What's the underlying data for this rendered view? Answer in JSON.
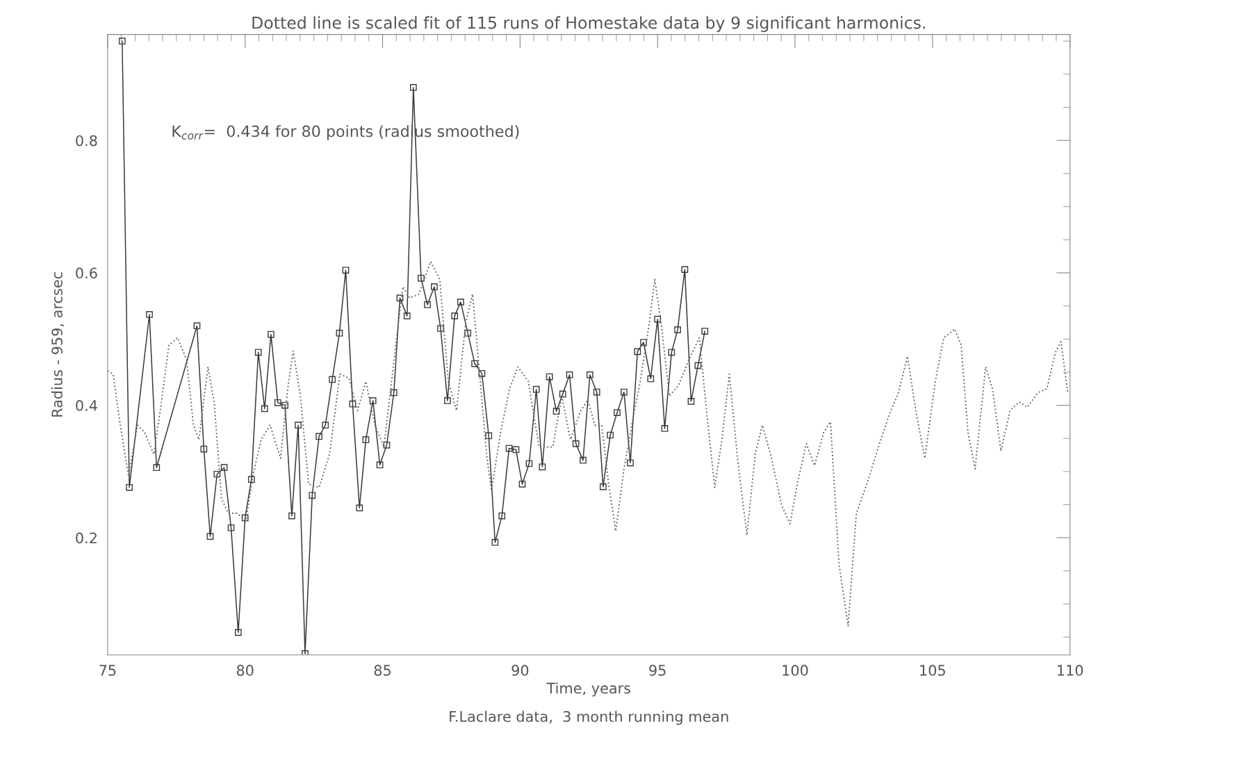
{
  "chart_data": {
    "type": "line",
    "title": "Dotted line is scaled fit of 115 runs of Homestake data by 9 significant harmonics.",
    "xlabel": "Time, years",
    "ylabel": "Radius - 959, arcsec",
    "annotations": [
      "K$_{corr}$=  0.434 for 80 points (radius smoothed)",
      "F.Laclare data,  3 month running mean"
    ],
    "xlim": [
      75,
      110
    ],
    "xticks": [
      75,
      80,
      85,
      90,
      95,
      100,
      105,
      110
    ],
    "ylim": [
      0.023,
      0.96
    ],
    "yticks": [
      0.2,
      0.4,
      0.6,
      0.8
    ],
    "grid": false,
    "legend": false,
    "series": [
      {
        "color": "#3a3a3a",
        "marker": "square",
        "line_style": "solid",
        "x": [
          75.53,
          75.79,
          76.52,
          76.78,
          78.25,
          78.5,
          78.73,
          78.98,
          79.24,
          79.49,
          79.75,
          80.0,
          80.23,
          80.48,
          80.71,
          80.94,
          81.19,
          81.45,
          81.7,
          81.93,
          82.18,
          82.44,
          82.69,
          82.92,
          83.17,
          83.43,
          83.66,
          83.91,
          84.16,
          84.39,
          84.65,
          84.9,
          85.15,
          85.41,
          85.63,
          85.89,
          86.12,
          86.4,
          86.63,
          86.88,
          87.11,
          87.36,
          87.62,
          87.84,
          88.1,
          88.35,
          88.61,
          88.86,
          89.09,
          89.34,
          89.6,
          89.85,
          90.08,
          90.33,
          90.59,
          90.81,
          91.07,
          91.32,
          91.55,
          91.8,
          92.03,
          92.29,
          92.54,
          92.79,
          93.02,
          93.28,
          93.53,
          93.78,
          94.01,
          94.27,
          94.49,
          94.75,
          95.0,
          95.26,
          95.51,
          95.73,
          95.99,
          96.22,
          96.47,
          96.72
        ],
        "values": [
          0.95,
          0.276,
          0.537,
          0.306,
          0.52,
          0.334,
          0.202,
          0.296,
          0.306,
          0.215,
          0.057,
          0.23,
          0.288,
          0.48,
          0.395,
          0.507,
          0.404,
          0.4,
          0.233,
          0.37,
          0.025,
          0.264,
          0.353,
          0.37,
          0.439,
          0.509,
          0.604,
          0.402,
          0.245,
          0.348,
          0.407,
          0.31,
          0.34,
          0.419,
          0.562,
          0.535,
          0.88,
          0.592,
          0.552,
          0.579,
          0.516,
          0.407,
          0.535,
          0.556,
          0.509,
          0.463,
          0.448,
          0.354,
          0.193,
          0.233,
          0.335,
          0.333,
          0.281,
          0.312,
          0.424,
          0.307,
          0.443,
          0.391,
          0.417,
          0.446,
          0.342,
          0.317,
          0.446,
          0.42,
          0.277,
          0.355,
          0.389,
          0.42,
          0.313,
          0.481,
          0.495,
          0.44,
          0.53,
          0.365,
          0.48,
          0.514,
          0.605,
          0.406,
          0.46,
          0.512
        ]
      },
      {
        "color": "#6a6a6a",
        "marker": "none",
        "line_style": "dotted",
        "x": [
          75.0,
          75.2,
          75.46,
          75.76,
          76.09,
          76.35,
          76.68,
          76.93,
          77.23,
          77.54,
          77.87,
          78.12,
          78.32,
          78.65,
          78.88,
          79.14,
          79.39,
          79.7,
          80.03,
          80.28,
          80.58,
          80.91,
          81.29,
          81.55,
          81.75,
          82.01,
          82.31,
          82.69,
          83.07,
          83.45,
          83.78,
          84.09,
          84.39,
          84.72,
          85.05,
          85.48,
          85.74,
          85.99,
          86.32,
          86.75,
          87.08,
          87.39,
          87.69,
          88.02,
          88.27,
          88.53,
          88.78,
          88.96,
          89.29,
          89.62,
          89.92,
          90.3,
          90.69,
          91.19,
          91.52,
          91.83,
          92.21,
          92.46,
          92.72,
          92.97,
          93.22,
          93.48,
          93.78,
          94.11,
          94.37,
          94.7,
          94.9,
          95.13,
          95.43,
          95.76,
          96.14,
          96.52,
          96.78,
          97.08,
          97.34,
          97.61,
          97.92,
          98.25,
          98.55,
          98.81,
          99.11,
          99.52,
          99.82,
          100.08,
          100.41,
          100.71,
          101.04,
          101.29,
          101.6,
          101.93,
          102.23,
          102.61,
          103.07,
          103.43,
          103.76,
          104.09,
          104.39,
          104.72,
          105.1,
          105.41,
          105.81,
          106.04,
          106.29,
          106.55,
          106.93,
          107.18,
          107.49,
          107.82,
          108.15,
          108.45,
          108.83,
          109.16,
          109.47,
          109.67,
          109.92
        ],
        "values": [
          0.452,
          0.447,
          0.37,
          0.293,
          0.37,
          0.359,
          0.326,
          0.397,
          0.491,
          0.502,
          0.469,
          0.37,
          0.348,
          0.458,
          0.403,
          0.259,
          0.237,
          0.237,
          0.226,
          0.293,
          0.348,
          0.37,
          0.32,
          0.425,
          0.482,
          0.414,
          0.281,
          0.276,
          0.326,
          0.447,
          0.441,
          0.392,
          0.436,
          0.37,
          0.337,
          0.491,
          0.579,
          0.562,
          0.568,
          0.617,
          0.59,
          0.436,
          0.392,
          0.524,
          0.568,
          0.447,
          0.326,
          0.271,
          0.359,
          0.425,
          0.458,
          0.436,
          0.337,
          0.337,
          0.414,
          0.348,
          0.392,
          0.408,
          0.37,
          0.37,
          0.281,
          0.21,
          0.304,
          0.381,
          0.436,
          0.524,
          0.59,
          0.524,
          0.414,
          0.43,
          0.469,
          0.502,
          0.392,
          0.276,
          0.348,
          0.447,
          0.315,
          0.204,
          0.326,
          0.37,
          0.326,
          0.248,
          0.221,
          0.281,
          0.342,
          0.309,
          0.359,
          0.375,
          0.16,
          0.067,
          0.237,
          0.281,
          0.342,
          0.386,
          0.419,
          0.474,
          0.392,
          0.32,
          0.436,
          0.502,
          0.515,
          0.491,
          0.359,
          0.304,
          0.458,
          0.425,
          0.331,
          0.392,
          0.405,
          0.397,
          0.419,
          0.425,
          0.48,
          0.496,
          0.419
        ]
      }
    ]
  }
}
